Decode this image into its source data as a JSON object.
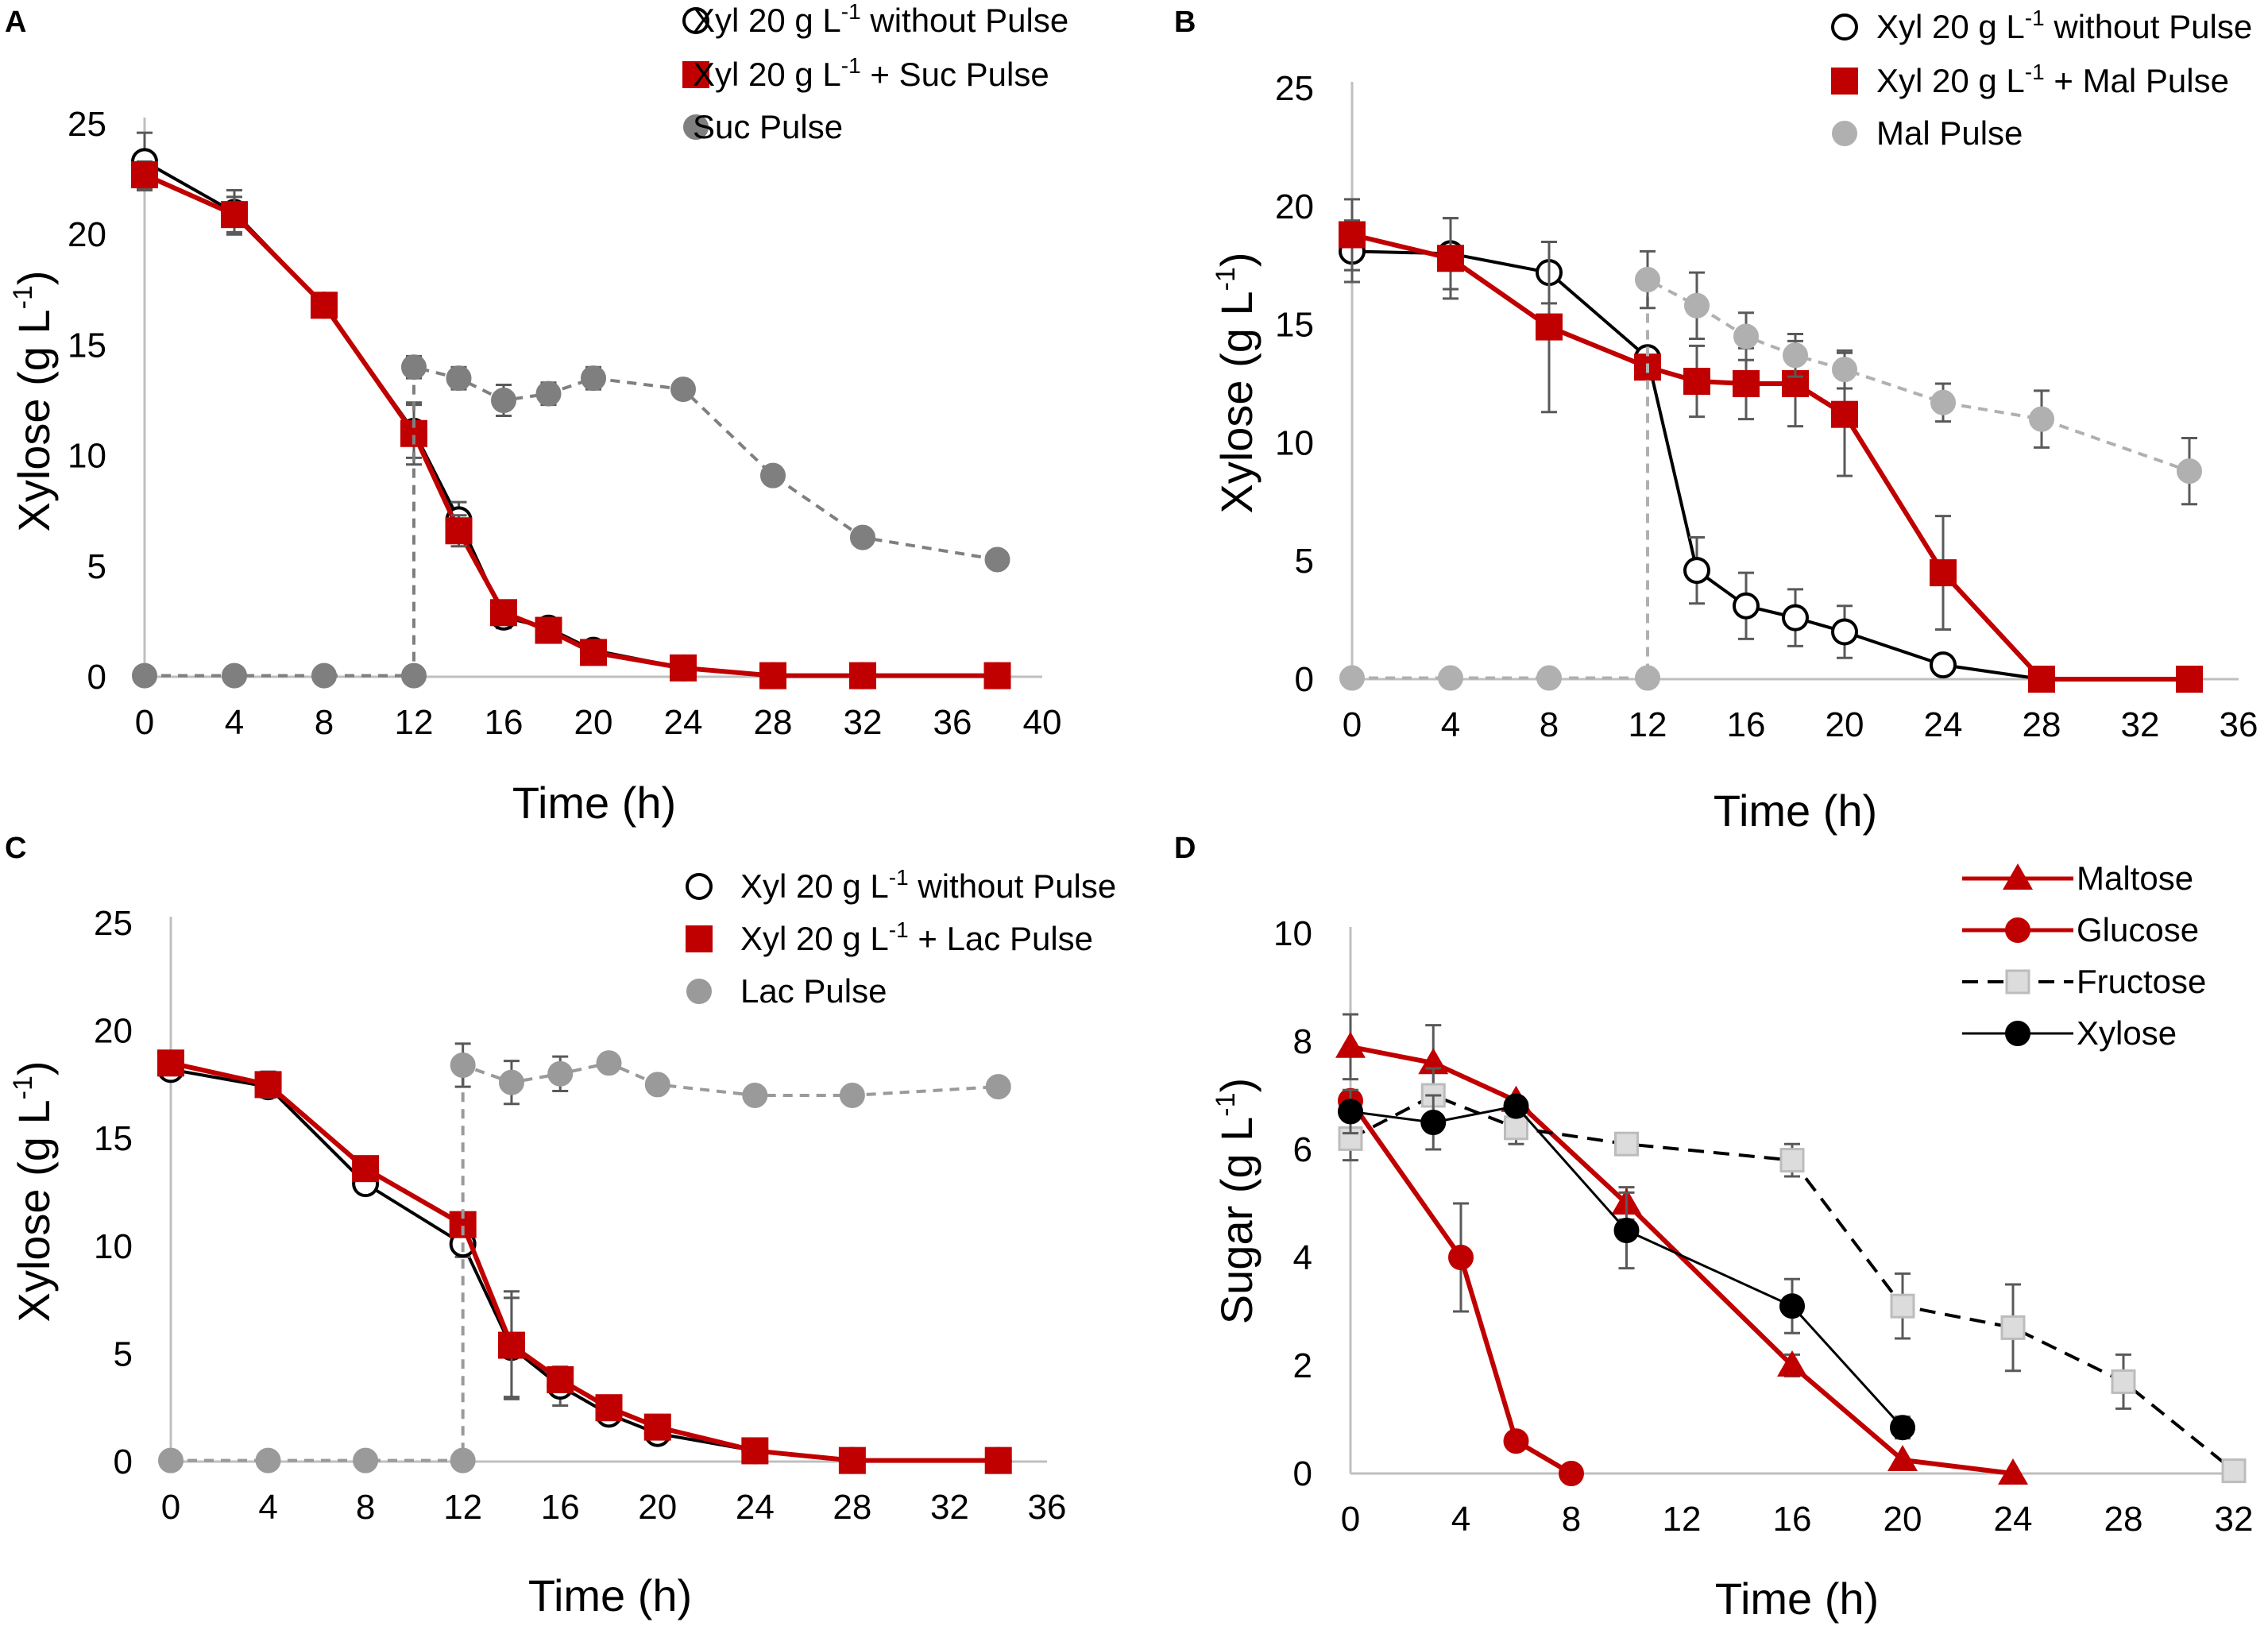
{
  "figure": {
    "panels": [
      {
        "letter": "A",
        "ylabel": "Xylose (g L",
        "ylabel_sup": "-1",
        "ylabel_end": ")",
        "xlabel": "Time (h)",
        "xlim": [
          0,
          40
        ],
        "ylim": [
          0,
          25
        ],
        "xticks": [
          0,
          4,
          8,
          12,
          16,
          20,
          24,
          28,
          32,
          36,
          40
        ],
        "yticks": [
          0,
          5,
          10,
          15,
          20,
          25
        ],
        "legend": [
          {
            "id": "s0",
            "pre": "Xyl 20 g L",
            "sup": "-1",
            "post": " without Pulse"
          },
          {
            "id": "s1",
            "pre": "Xyl 20 g L",
            "sup": "-1",
            "post": " + Suc Pulse"
          },
          {
            "id": "s2",
            "pre": "Suc Pulse",
            "sup": "",
            "post": ""
          }
        ]
      },
      {
        "letter": "B",
        "ylabel": "Xylose (g L",
        "ylabel_sup": "-1",
        "ylabel_end": ")",
        "xlabel": "Time (h)",
        "xlim": [
          0,
          36
        ],
        "ylim": [
          0,
          25
        ],
        "xticks": [
          0,
          4,
          8,
          12,
          16,
          20,
          24,
          28,
          32,
          36
        ],
        "yticks": [
          0,
          5,
          10,
          15,
          20,
          25
        ],
        "legend": [
          {
            "id": "s0",
            "pre": "Xyl 20 g L",
            "sup": "-1",
            "post": " without Pulse"
          },
          {
            "id": "s1",
            "pre": "Xyl 20 g L",
            "sup": "-1",
            "post": " + Mal Pulse"
          },
          {
            "id": "s2",
            "pre": "Mal Pulse",
            "sup": "",
            "post": ""
          }
        ]
      },
      {
        "letter": "C",
        "ylabel": "Xylose (g L",
        "ylabel_sup": "-1",
        "ylabel_end": ")",
        "xlabel": "Time (h)",
        "xlim": [
          0,
          36
        ],
        "ylim": [
          0,
          25
        ],
        "xticks": [
          0,
          4,
          8,
          12,
          16,
          20,
          24,
          28,
          32,
          36
        ],
        "yticks": [
          0,
          5,
          10,
          15,
          20,
          25
        ],
        "legend": [
          {
            "id": "s0",
            "pre": "Xyl 20 g L",
            "sup": "-1",
            "post": " without Pulse"
          },
          {
            "id": "s1",
            "pre": "Xyl 20 g L",
            "sup": "-1",
            "post": " + Lac Pulse"
          },
          {
            "id": "s2",
            "pre": "Lac Pulse",
            "sup": "",
            "post": ""
          }
        ]
      },
      {
        "letter": "D",
        "ylabel": "Sugar (g L",
        "ylabel_sup": "-1",
        "ylabel_end": ")",
        "xlabel": "Time (h)",
        "xlim": [
          0,
          32
        ],
        "ylim": [
          0,
          10
        ],
        "xticks": [
          0,
          4,
          8,
          12,
          16,
          20,
          24,
          28,
          32
        ],
        "yticks": [
          0,
          2,
          4,
          6,
          8,
          10
        ],
        "legend": [
          {
            "id": "s0",
            "pre": "Maltose",
            "sup": "",
            "post": ""
          },
          {
            "id": "s1",
            "pre": "Glucose",
            "sup": "",
            "post": ""
          },
          {
            "id": "s2",
            "pre": "Fructose",
            "sup": "",
            "post": ""
          },
          {
            "id": "s3",
            "pre": "Xylose",
            "sup": "",
            "post": ""
          }
        ]
      }
    ]
  },
  "chart_data": [
    {
      "type": "line",
      "panel": "A",
      "xlabel": "Time (h)",
      "ylabel": "Xylose (g L-1)",
      "xlim": [
        0,
        40
      ],
      "ylim": [
        0,
        25
      ],
      "series": [
        {
          "name": "Xyl 20 g L-1 without Pulse",
          "marker": "open-circle",
          "color": "#000000",
          "x": [
            0,
            4,
            8,
            12,
            14,
            16,
            18,
            20,
            24,
            28,
            32,
            38
          ],
          "y": [
            23.3,
            21.0,
            16.8,
            11.1,
            7.1,
            2.7,
            2.2,
            1.2,
            0.4,
            0.05,
            0.05,
            0.05
          ],
          "err": [
            1.3,
            1.0,
            0,
            1.2,
            0.8,
            0.5,
            0,
            0,
            0,
            0,
            0,
            0
          ]
        },
        {
          "name": "Xyl 20 g L-1 + Suc Pulse",
          "marker": "filled-square",
          "color": "#c00000",
          "x": [
            0,
            4,
            8,
            12,
            14,
            16,
            18,
            20,
            24,
            28,
            32,
            38
          ],
          "y": [
            22.7,
            20.9,
            16.8,
            11.0,
            6.6,
            2.9,
            2.1,
            1.1,
            0.4,
            0.05,
            0.05,
            0.05
          ],
          "err": [
            0.6,
            0.8,
            0,
            1.4,
            0.7,
            0.5,
            0,
            0,
            0,
            0,
            0,
            0
          ]
        },
        {
          "name": "Suc Pulse",
          "marker": "filled-circle",
          "color": "#7f7f7f",
          "dashed": true,
          "x": [
            0,
            4,
            8,
            12,
            12,
            14,
            16,
            18,
            20,
            24,
            28,
            32,
            38
          ],
          "y": [
            0.05,
            0.05,
            0.05,
            0.05,
            14.0,
            13.5,
            12.5,
            12.8,
            13.5,
            13.0,
            9.1,
            6.3,
            5.3
          ],
          "err": [
            0,
            0,
            0,
            0,
            0.5,
            0.5,
            0.7,
            0.5,
            0.5,
            0,
            0,
            0,
            0
          ]
        }
      ]
    },
    {
      "type": "line",
      "panel": "B",
      "xlabel": "Time (h)",
      "ylabel": "Xylose (g L-1)",
      "xlim": [
        0,
        36
      ],
      "ylim": [
        0,
        25
      ],
      "series": [
        {
          "name": "Xyl 20 g L-1 without Pulse",
          "marker": "open-circle",
          "color": "#000000",
          "x": [
            0,
            4,
            8,
            12,
            14,
            16,
            18,
            20,
            24,
            28,
            34
          ],
          "y": [
            18.1,
            18.0,
            17.2,
            13.6,
            4.6,
            3.1,
            2.6,
            2.0,
            0.6,
            0.0,
            0.0
          ],
          "err": [
            1.3,
            1.5,
            1.3,
            0,
            1.4,
            1.4,
            1.2,
            1.1,
            0,
            0,
            0
          ]
        },
        {
          "name": "Xyl 20 g L-1 + Mal Pulse",
          "marker": "filled-square",
          "color": "#c00000",
          "x": [
            0,
            4,
            8,
            12,
            14,
            16,
            18,
            20,
            24,
            28,
            34
          ],
          "y": [
            18.8,
            17.8,
            14.9,
            13.2,
            12.6,
            12.5,
            12.5,
            11.2,
            4.5,
            0.0,
            0.0
          ],
          "err": [
            1.5,
            1.7,
            3.6,
            0,
            1.5,
            1.5,
            1.8,
            2.6,
            2.4,
            0,
            0
          ]
        },
        {
          "name": "Mal Pulse",
          "marker": "filled-circle",
          "color": "#b0b0b0",
          "dashed": true,
          "x": [
            0,
            4,
            8,
            12,
            12,
            14,
            16,
            18,
            20,
            24,
            28,
            34
          ],
          "y": [
            0.05,
            0.05,
            0.05,
            0.05,
            16.9,
            15.8,
            14.5,
            13.7,
            13.1,
            11.7,
            11.0,
            8.8
          ],
          "err": [
            0,
            0,
            0,
            0,
            1.2,
            1.4,
            1.0,
            0.9,
            0.8,
            0.8,
            1.2,
            1.4
          ]
        }
      ]
    },
    {
      "type": "line",
      "panel": "C",
      "xlabel": "Time (h)",
      "ylabel": "Xylose (g L-1)",
      "xlim": [
        0,
        36
      ],
      "ylim": [
        0,
        25
      ],
      "series": [
        {
          "name": "Xyl 20 g L-1 without Pulse",
          "marker": "open-circle",
          "color": "#000000",
          "x": [
            0,
            4,
            8,
            12,
            14,
            16,
            18,
            20,
            24,
            28,
            34
          ],
          "y": [
            18.2,
            17.4,
            12.9,
            10.1,
            5.3,
            3.5,
            2.2,
            1.3,
            0.5,
            0.05,
            0.05
          ],
          "err": [
            0,
            0,
            0,
            0.6,
            2.3,
            0.9,
            0,
            0,
            0,
            0,
            0
          ]
        },
        {
          "name": "Xyl 20 g L-1 + Lac Pulse",
          "marker": "filled-square",
          "color": "#c00000",
          "x": [
            0,
            4,
            8,
            12,
            14,
            16,
            18,
            20,
            24,
            28,
            34
          ],
          "y": [
            18.5,
            17.5,
            13.6,
            11.0,
            5.4,
            3.8,
            2.5,
            1.6,
            0.5,
            0.05,
            0.05
          ],
          "err": [
            0,
            0.6,
            0,
            0,
            2.5,
            0.5,
            0,
            0,
            0,
            0,
            0
          ]
        },
        {
          "name": "Lac Pulse",
          "marker": "filled-circle",
          "color": "#9a9a9a",
          "dashed": true,
          "x": [
            0,
            4,
            8,
            12,
            12,
            14,
            16,
            18,
            20,
            24,
            28,
            34
          ],
          "y": [
            0.05,
            0.05,
            0.05,
            0.05,
            18.4,
            17.6,
            18.0,
            18.5,
            17.5,
            17.0,
            17.0,
            17.4
          ],
          "err": [
            0,
            0,
            0,
            0,
            1.0,
            1.0,
            0.8,
            0,
            0,
            0,
            0,
            0
          ]
        }
      ]
    },
    {
      "type": "line",
      "panel": "D",
      "xlabel": "Time (h)",
      "ylabel": "Sugar (g L-1)",
      "xlim": [
        0,
        32
      ],
      "ylim": [
        0,
        10
      ],
      "series": [
        {
          "name": "Maltose",
          "marker": "filled-triangle",
          "color": "#c00000",
          "x": [
            0,
            3,
            6,
            10,
            16,
            20,
            24
          ],
          "y": [
            7.9,
            7.6,
            6.9,
            5.0,
            2.0,
            0.25,
            0.0
          ],
          "err": [
            0.6,
            0.7,
            0,
            0.3,
            0.2,
            0,
            0
          ]
        },
        {
          "name": "Glucose",
          "marker": "filled-circle",
          "color": "#c00000",
          "x": [
            0,
            4,
            6,
            8
          ],
          "y": [
            6.9,
            4.0,
            0.6,
            0.0
          ],
          "err": [
            0,
            1.0,
            0,
            0
          ]
        },
        {
          "name": "Fructose",
          "marker": "open-square",
          "color": "#000000",
          "dashed": true,
          "x": [
            0,
            3,
            6,
            10,
            16,
            20,
            24,
            28,
            32
          ],
          "y": [
            6.2,
            7.0,
            6.4,
            6.1,
            5.8,
            3.1,
            2.7,
            1.7,
            0.05
          ],
          "err": [
            0.4,
            0.5,
            0.3,
            0.2,
            0.3,
            0.6,
            0.8,
            0.5,
            0
          ]
        },
        {
          "name": "Xylose",
          "marker": "filled-circle",
          "color": "#000000",
          "thin": true,
          "x": [
            0,
            3,
            6,
            10,
            16,
            20
          ],
          "y": [
            6.7,
            6.5,
            6.8,
            4.5,
            3.1,
            0.85
          ],
          "err": [
            0.4,
            0.5,
            0,
            0.7,
            0.5,
            0.2
          ]
        }
      ]
    }
  ]
}
